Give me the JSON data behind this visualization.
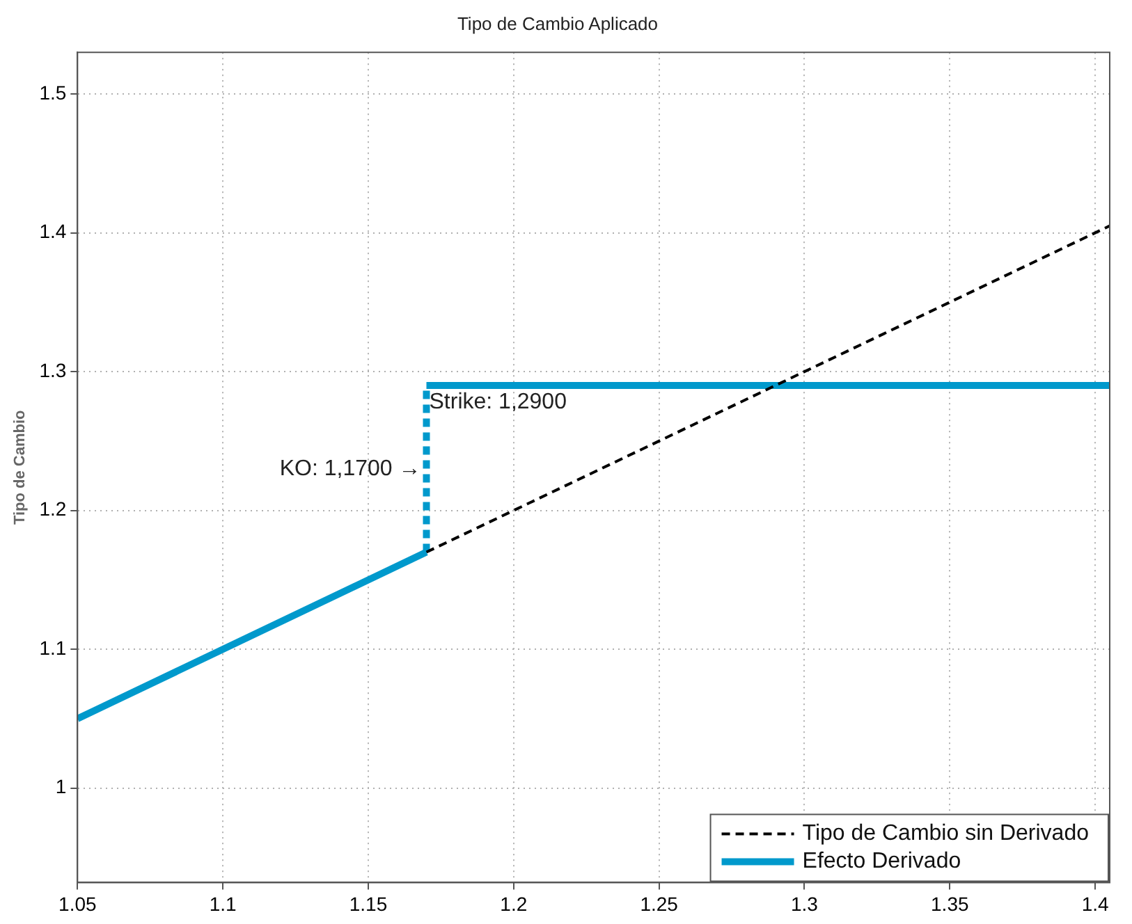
{
  "chart_data": {
    "type": "line",
    "title": "Tipo de Cambio Aplicado",
    "ylabel": "Tipo de Cambio",
    "xlim": [
      1.05,
      1.405
    ],
    "ylim": [
      0.932,
      1.53
    ],
    "xticks": [
      1.05,
      1.1,
      1.15,
      1.2,
      1.25,
      1.3,
      1.35,
      1.4
    ],
    "yticks": [
      1,
      1.1,
      1.2,
      1.3,
      1.4,
      1.5
    ],
    "grid": true,
    "legend": "bottom right",
    "marker": "none",
    "series": [
      {
        "name": "Tipo de Cambio sin Derivado",
        "color": "#000000",
        "line_style": "dashed",
        "x": [
          1.17,
          1.405
        ],
        "values": [
          1.17,
          1.405
        ]
      },
      {
        "color": "#0099cc",
        "line_style": "dashed",
        "x": [
          1.17,
          1.17
        ],
        "values": [
          1.17,
          1.29
        ]
      },
      {
        "name": "Efecto Derivado",
        "color": "#0099cc",
        "line_style": "solid",
        "x": [
          1.05,
          1.17
        ],
        "values": [
          1.05,
          1.17
        ]
      },
      {
        "color": "#0099cc",
        "line_style": "solid",
        "x": [
          1.17,
          1.405
        ],
        "values": [
          1.29,
          1.29
        ]
      }
    ],
    "annotations": [
      {
        "text": "Strike: 1,2900",
        "x": 1.17,
        "y": 1.29
      },
      {
        "text": "KO: 1,1700 →",
        "x": 1.17,
        "y": 1.23
      }
    ]
  }
}
